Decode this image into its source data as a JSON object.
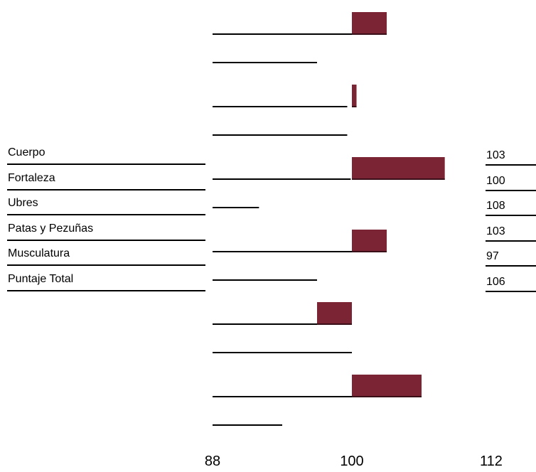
{
  "legend": {
    "items": [
      {
        "label": "Cuerpo",
        "value": "103"
      },
      {
        "label": "Fortaleza",
        "value": "100"
      },
      {
        "label": "Ubres",
        "value": "108"
      },
      {
        "label": "Patas y Pezuñas",
        "value": "103"
      },
      {
        "label": "Musculatura",
        "value": "97"
      },
      {
        "label": "Puntaje Total",
        "value": "106"
      }
    ]
  },
  "chart_data": {
    "type": "bar",
    "orientation": "horizontal",
    "baseline": 100,
    "xlim": [
      88,
      112
    ],
    "xticks": [
      "88",
      "100",
      "112"
    ],
    "bar_color": "#7b2433",
    "bars": [
      {
        "start": 100,
        "end": 103
      },
      {
        "start": 100,
        "end": 100.4
      },
      {
        "start": 100,
        "end": 108
      },
      {
        "start": 100,
        "end": 103
      },
      {
        "start": 97,
        "end": 100
      },
      {
        "start": 100,
        "end": 106
      }
    ],
    "reference_lines": [
      {
        "below_bar": 1,
        "start": 88,
        "end": 100
      },
      {
        "below_bar": 1,
        "start": 88,
        "end": 97
      },
      {
        "below_bar": 2,
        "start": 88,
        "end": 99.6
      },
      {
        "below_bar": 2,
        "start": 88,
        "end": 99.6
      },
      {
        "below_bar": 3,
        "start": 88,
        "end": 99.9
      },
      {
        "below_bar": 3,
        "start": 88,
        "end": 92
      },
      {
        "below_bar": 4,
        "start": 88,
        "end": 100
      },
      {
        "below_bar": 4,
        "start": 88,
        "end": 97
      },
      {
        "below_bar": 5,
        "start": 88,
        "end": 97
      },
      {
        "below_bar": 5,
        "start": 88,
        "end": 100
      },
      {
        "below_bar": 6,
        "start": 88,
        "end": 100
      },
      {
        "below_bar": 6,
        "start": 88,
        "end": 94
      }
    ]
  }
}
